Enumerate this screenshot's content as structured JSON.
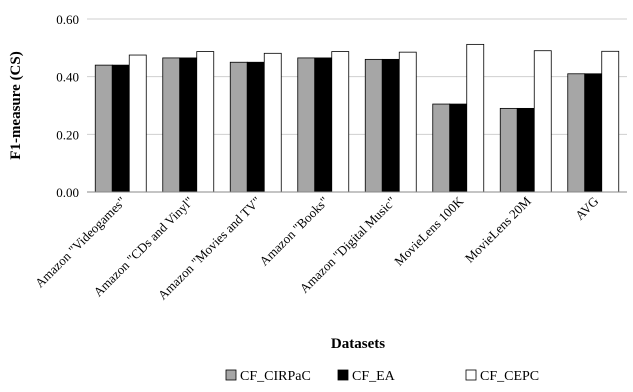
{
  "chart_data": {
    "type": "bar",
    "xlabel": "Datasets",
    "ylabel": "F1-measure (CS)",
    "ylim": [
      0,
      0.6
    ],
    "yticks": [
      "0.00",
      "0.20",
      "0.40",
      "0.60"
    ],
    "grid": true,
    "legend": "bottom",
    "categories": [
      "Amazon \"Videogames\"",
      "Amazon \"CDs and Vinyl\"",
      "Amazon \"Movies and TV\"",
      "Amazon \"Books\"",
      "Amazon \"Digital Music\"",
      "MovieLens 100K",
      "MovieLens 20M",
      "AVG"
    ],
    "series": [
      {
        "name": "CF_CIRPaC",
        "color": "#a6a6a6",
        "values": [
          0.44,
          0.465,
          0.45,
          0.465,
          0.46,
          0.305,
          0.29,
          0.41
        ]
      },
      {
        "name": "CF_EA",
        "color": "#000000",
        "values": [
          0.44,
          0.465,
          0.45,
          0.465,
          0.46,
          0.305,
          0.29,
          0.41
        ]
      },
      {
        "name": "CF_CEPC",
        "color": "#ffffff",
        "values": [
          0.475,
          0.487,
          0.481,
          0.487,
          0.485,
          0.512,
          0.49,
          0.488
        ]
      }
    ]
  }
}
